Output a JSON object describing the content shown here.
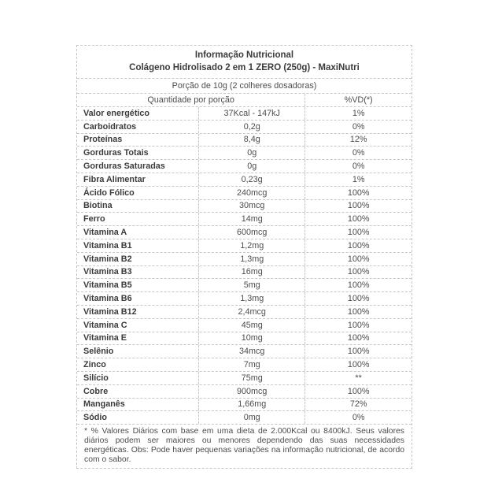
{
  "header": {
    "title": "Informação Nutricional",
    "subtitle": "Colágeno Hidrolisado 2 em 1 ZERO (250g) - MaxiNutri",
    "portion": "Porção de 10g (2 colheres dosadoras)",
    "col_quantity": "Quantidade por porção",
    "col_dv": "%VD(*)"
  },
  "table": {
    "rows": [
      {
        "name": "Valor energético",
        "qty": "37Kcal - 147kJ",
        "vd": "1%"
      },
      {
        "name": "Carboidratos",
        "qty": "0,2g",
        "vd": "0%"
      },
      {
        "name": "Proteínas",
        "qty": "8,4g",
        "vd": "12%"
      },
      {
        "name": "Gorduras Totais",
        "qty": "0g",
        "vd": "0%"
      },
      {
        "name": "Gorduras Saturadas",
        "qty": "0g",
        "vd": "0%"
      },
      {
        "name": "Fibra Alimentar",
        "qty": "0,23g",
        "vd": "1%"
      },
      {
        "name": "Ácido Fólico",
        "qty": "240mcg",
        "vd": "100%"
      },
      {
        "name": "Biotina",
        "qty": "30mcg",
        "vd": "100%"
      },
      {
        "name": "Ferro",
        "qty": "14mg",
        "vd": "100%"
      },
      {
        "name": "Vitamina A",
        "qty": "600mcg",
        "vd": "100%"
      },
      {
        "name": "Vitamina B1",
        "qty": "1,2mg",
        "vd": "100%"
      },
      {
        "name": "Vitamina B2",
        "qty": "1,3mg",
        "vd": "100%"
      },
      {
        "name": "Vitamina B3",
        "qty": "16mg",
        "vd": "100%"
      },
      {
        "name": "Vitamina B5",
        "qty": "5mg",
        "vd": "100%"
      },
      {
        "name": "Vitamina B6",
        "qty": "1,3mg",
        "vd": "100%"
      },
      {
        "name": "Vitamina B12",
        "qty": "2,4mcg",
        "vd": "100%"
      },
      {
        "name": "Vitamina C",
        "qty": "45mg",
        "vd": "100%"
      },
      {
        "name": "Vitamina E",
        "qty": "10mg",
        "vd": "100%"
      },
      {
        "name": "Selênio",
        "qty": "34mcg",
        "vd": "100%"
      },
      {
        "name": "Zinco",
        "qty": "7mg",
        "vd": "100%"
      },
      {
        "name": "Silício",
        "qty": "75mg",
        "vd": "**"
      },
      {
        "name": "Cobre",
        "qty": "900mcg",
        "vd": "100%"
      },
      {
        "name": "Manganês",
        "qty": "1,66mg",
        "vd": "72%"
      },
      {
        "name": "Sódio",
        "qty": "0mg",
        "vd": "0%"
      }
    ]
  },
  "footer": {
    "note": "* % Valores Diários com base em uma dieta de 2.000Kcal ou 8400kJ. Seus valores diários podem ser maiores ou menores dependendo das suas necessidades energéticas. Obs: Pode haver pequenas variações na informação nutricional, de acordo com o sabor."
  },
  "colors": {
    "background": "#ffffff",
    "border": "#c7c7c7",
    "label_text": "#3b3b3b",
    "value_text": "#4d4d4d"
  }
}
